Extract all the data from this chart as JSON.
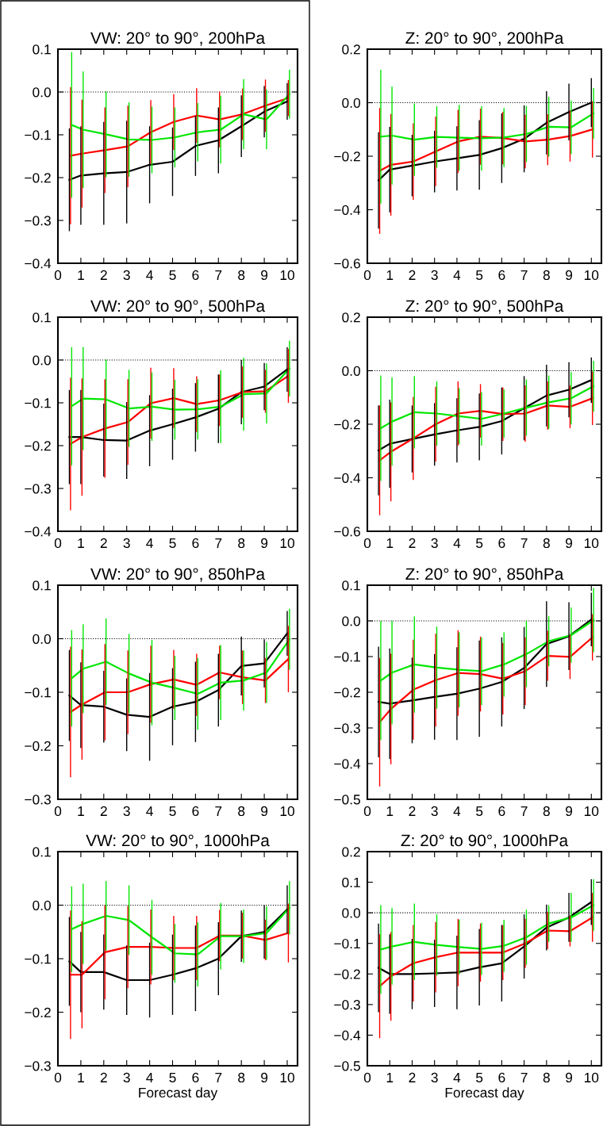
{
  "chart_data": [
    {
      "type": "line",
      "title": "VW: 20° to 90°, 200hPa",
      "xlim": [
        0,
        10.45
      ],
      "xticks": [
        0,
        1,
        2,
        3,
        4,
        5,
        6,
        7,
        8,
        9,
        10
      ],
      "ylim": [
        -0.4,
        0.1
      ],
      "yticks": [
        {
          "value": -0.4,
          "label": "−0.4"
        },
        {
          "value": -0.3,
          "label": "−0.3"
        },
        {
          "value": -0.2,
          "label": "−0.2"
        },
        {
          "value": -0.1,
          "label": "−0.1"
        },
        {
          "value": 0,
          "label": "0.0"
        },
        {
          "value": 0.1,
          "label": "0.1"
        }
      ],
      "ref_lines": [
        {
          "axis": "y",
          "value": 0,
          "line_style": "dotted",
          "color": "#000000"
        }
      ],
      "line_style": "solid",
      "marker": "none",
      "series": [
        {
          "color": "#000000",
          "x": [
            0.5,
            1,
            2,
            3,
            4,
            5,
            6,
            7,
            8,
            9,
            10
          ],
          "values": [
            -0.205,
            -0.195,
            -0.19,
            -0.187,
            -0.17,
            -0.163,
            -0.126,
            -0.113,
            -0.08,
            -0.046,
            -0.022
          ],
          "errors": [
            0.12,
            0.115,
            0.12,
            0.12,
            0.09,
            0.08,
            0.07,
            0.077,
            0.072,
            0.06,
            0.043
          ]
        },
        {
          "color": "#ff0000",
          "x": [
            0.55,
            1.05,
            2.05,
            3.05,
            4.05,
            5.05,
            6.05,
            7.05,
            8.05,
            9.05,
            10.05
          ],
          "values": [
            -0.149,
            -0.144,
            -0.136,
            -0.127,
            -0.094,
            -0.07,
            -0.055,
            -0.064,
            -0.052,
            -0.032,
            -0.014
          ],
          "errors": [
            0.16,
            0.126,
            0.1,
            0.095,
            0.075,
            0.065,
            0.064,
            0.065,
            0.06,
            0.061,
            0.042
          ]
        },
        {
          "color": "#00e600",
          "x": [
            0.6,
            1.1,
            2.1,
            3.1,
            4.1,
            5.1,
            6.1,
            7.1,
            8.1,
            9.1,
            10.1
          ],
          "values": [
            -0.077,
            -0.088,
            -0.099,
            -0.111,
            -0.112,
            -0.106,
            -0.094,
            -0.088,
            -0.052,
            -0.064,
            -0.005
          ],
          "errors": [
            0.17,
            0.136,
            0.1,
            0.087,
            0.078,
            0.07,
            0.068,
            0.079,
            0.082,
            0.07,
            0.057
          ]
        }
      ]
    },
    {
      "type": "line",
      "title": "Z: 20° to 90°, 200hPa",
      "xlim": [
        0,
        10.45
      ],
      "xticks": [
        0,
        1,
        2,
        3,
        4,
        5,
        6,
        7,
        8,
        9,
        10
      ],
      "ylim": [
        -0.6,
        0.2
      ],
      "yticks": [
        {
          "value": -0.6,
          "label": "−0.6"
        },
        {
          "value": -0.4,
          "label": "−0.4"
        },
        {
          "value": -0.2,
          "label": "−0.2"
        },
        {
          "value": 0,
          "label": "0.0"
        },
        {
          "value": 0.2,
          "label": "0.2"
        }
      ],
      "ref_lines": [
        {
          "axis": "y",
          "value": 0,
          "line_style": "dotted",
          "color": "#000000"
        }
      ],
      "line_style": "solid",
      "marker": "none",
      "series": [
        {
          "color": "#000000",
          "x": [
            0.5,
            1,
            2,
            3,
            4,
            5,
            6,
            7,
            8,
            9,
            10
          ],
          "values": [
            -0.29,
            -0.25,
            -0.235,
            -0.22,
            -0.208,
            -0.195,
            -0.17,
            -0.135,
            -0.075,
            -0.035,
            0.0
          ],
          "errors": [
            0.18,
            0.16,
            0.115,
            0.115,
            0.12,
            0.13,
            0.13,
            0.125,
            0.118,
            0.106,
            0.092
          ]
        },
        {
          "color": "#ff0000",
          "x": [
            0.55,
            1.05,
            2.05,
            3.05,
            4.05,
            5.05,
            6.05,
            7.05,
            8.05,
            9.05,
            10.05
          ],
          "values": [
            -0.255,
            -0.232,
            -0.22,
            -0.182,
            -0.145,
            -0.127,
            -0.132,
            -0.145,
            -0.138,
            -0.125,
            -0.1
          ],
          "errors": [
            0.235,
            0.19,
            0.143,
            0.13,
            0.118,
            0.105,
            0.098,
            0.1,
            0.095,
            0.095,
            0.105
          ]
        },
        {
          "color": "#00e600",
          "x": [
            0.6,
            1.1,
            2.1,
            3.1,
            4.1,
            5.1,
            6.1,
            7.1,
            8.1,
            9.1,
            10.1
          ],
          "values": [
            -0.127,
            -0.123,
            -0.138,
            -0.128,
            -0.131,
            -0.133,
            -0.13,
            -0.117,
            -0.09,
            -0.092,
            -0.04
          ],
          "errors": [
            0.25,
            0.183,
            0.135,
            0.115,
            0.123,
            0.12,
            0.11,
            0.105,
            0.112,
            0.1,
            0.095
          ]
        }
      ]
    },
    {
      "type": "line",
      "title": "VW: 20° to 90°, 500hPa",
      "xlim": [
        0,
        10.45
      ],
      "xticks": [
        0,
        1,
        2,
        3,
        4,
        5,
        6,
        7,
        8,
        9,
        10
      ],
      "ylim": [
        -0.4,
        0.1
      ],
      "yticks": [
        {
          "value": -0.4,
          "label": "−0.4"
        },
        {
          "value": -0.3,
          "label": "−0.3"
        },
        {
          "value": -0.2,
          "label": "−0.2"
        },
        {
          "value": -0.1,
          "label": "−0.1"
        },
        {
          "value": 0,
          "label": "0.0"
        },
        {
          "value": 0.1,
          "label": "0.1"
        }
      ],
      "ref_lines": [
        {
          "axis": "y",
          "value": 0,
          "line_style": "dotted",
          "color": "#000000"
        }
      ],
      "line_style": "solid",
      "marker": "none",
      "series": [
        {
          "color": "#000000",
          "x": [
            0.5,
            1,
            2,
            3,
            4,
            5,
            6,
            7,
            8,
            9,
            10
          ],
          "values": [
            -0.18,
            -0.18,
            -0.187,
            -0.188,
            -0.165,
            -0.15,
            -0.134,
            -0.114,
            -0.075,
            -0.062,
            -0.022
          ],
          "errors": [
            0.11,
            0.11,
            0.085,
            0.09,
            0.083,
            0.083,
            0.08,
            0.08,
            0.075,
            0.055,
            0.052
          ]
        },
        {
          "color": "#ff0000",
          "x": [
            0.55,
            1.05,
            2.05,
            3.05,
            4.05,
            5.05,
            6.05,
            7.05,
            8.05,
            9.05,
            10.05
          ],
          "values": [
            -0.196,
            -0.18,
            -0.16,
            -0.145,
            -0.101,
            -0.089,
            -0.103,
            -0.094,
            -0.075,
            -0.073,
            -0.037
          ],
          "errors": [
            0.155,
            0.137,
            0.115,
            0.1,
            0.083,
            0.07,
            0.065,
            0.06,
            0.06,
            0.05,
            0.063
          ]
        },
        {
          "color": "#00e600",
          "x": [
            0.6,
            1.1,
            2.1,
            3.1,
            4.1,
            5.1,
            6.1,
            7.1,
            8.1,
            9.1,
            10.1
          ],
          "values": [
            -0.108,
            -0.09,
            -0.092,
            -0.113,
            -0.109,
            -0.116,
            -0.115,
            -0.109,
            -0.08,
            -0.078,
            -0.02
          ],
          "errors": [
            0.138,
            0.12,
            0.093,
            0.09,
            0.08,
            0.07,
            0.07,
            0.085,
            0.085,
            0.07,
            0.065
          ]
        }
      ]
    },
    {
      "type": "line",
      "title": "Z: 20° to 90°, 500hPa",
      "xlim": [
        0,
        10.45
      ],
      "xticks": [
        0,
        1,
        2,
        3,
        4,
        5,
        6,
        7,
        8,
        9,
        10
      ],
      "ylim": [
        -0.6,
        0.2
      ],
      "yticks": [
        {
          "value": -0.6,
          "label": "−0.6"
        },
        {
          "value": -0.4,
          "label": "−0.4"
        },
        {
          "value": -0.2,
          "label": "−0.2"
        },
        {
          "value": 0,
          "label": "0.0"
        },
        {
          "value": 0.2,
          "label": "0.2"
        }
      ],
      "ref_lines": [
        {
          "axis": "y",
          "value": 0,
          "line_style": "dotted",
          "color": "#000000"
        }
      ],
      "line_style": "solid",
      "marker": "none",
      "series": [
        {
          "color": "#000000",
          "x": [
            0.5,
            1,
            2,
            3,
            4,
            5,
            6,
            7,
            8,
            9,
            10
          ],
          "values": [
            -0.298,
            -0.273,
            -0.255,
            -0.238,
            -0.223,
            -0.21,
            -0.188,
            -0.14,
            -0.093,
            -0.071,
            -0.035
          ],
          "errors": [
            0.168,
            0.165,
            0.125,
            0.117,
            0.12,
            0.125,
            0.125,
            0.12,
            0.115,
            0.103,
            0.085
          ]
        },
        {
          "color": "#ff0000",
          "x": [
            0.55,
            1.05,
            2.05,
            3.05,
            4.05,
            5.05,
            6.05,
            7.05,
            8.05,
            9.05,
            10.05
          ],
          "values": [
            -0.335,
            -0.303,
            -0.253,
            -0.2,
            -0.16,
            -0.15,
            -0.162,
            -0.16,
            -0.13,
            -0.135,
            -0.103
          ],
          "errors": [
            0.205,
            0.185,
            0.155,
            0.14,
            0.12,
            0.1,
            0.1,
            0.105,
            0.09,
            0.08,
            0.1
          ]
        },
        {
          "color": "#00e600",
          "x": [
            0.6,
            1.1,
            2.1,
            3.1,
            4.1,
            5.1,
            6.1,
            7.1,
            8.1,
            9.1,
            10.1
          ],
          "values": [
            -0.215,
            -0.19,
            -0.155,
            -0.16,
            -0.17,
            -0.18,
            -0.16,
            -0.138,
            -0.118,
            -0.103,
            -0.058
          ],
          "errors": [
            0.197,
            0.165,
            0.135,
            0.12,
            0.105,
            0.1,
            0.09,
            0.105,
            0.1,
            0.098,
            0.095
          ]
        }
      ]
    },
    {
      "type": "line",
      "title": "VW: 20° to 90°, 850hPa",
      "xlim": [
        0,
        10.45
      ],
      "xticks": [
        0,
        1,
        2,
        3,
        4,
        5,
        6,
        7,
        8,
        9,
        10
      ],
      "ylim": [
        -0.3,
        0.1
      ],
      "yticks": [
        {
          "value": -0.3,
          "label": "−0.3"
        },
        {
          "value": -0.2,
          "label": "−0.2"
        },
        {
          "value": -0.1,
          "label": "−0.1"
        },
        {
          "value": 0,
          "label": "0.0"
        },
        {
          "value": 0.1,
          "label": "0.1"
        }
      ],
      "ref_lines": [
        {
          "axis": "y",
          "value": 0,
          "line_style": "dotted",
          "color": "#000000"
        }
      ],
      "line_style": "solid",
      "marker": "none",
      "series": [
        {
          "color": "#000000",
          "x": [
            0.5,
            1,
            2,
            3,
            4,
            5,
            6,
            7,
            8,
            9,
            10
          ],
          "values": [
            -0.106,
            -0.124,
            -0.127,
            -0.142,
            -0.146,
            -0.127,
            -0.118,
            -0.096,
            -0.051,
            -0.046,
            0.01
          ],
          "errors": [
            0.085,
            0.08,
            0.067,
            0.068,
            0.082,
            0.072,
            0.075,
            0.068,
            0.055,
            0.045,
            0.042
          ]
        },
        {
          "color": "#ff0000",
          "x": [
            0.55,
            1.05,
            2.05,
            3.05,
            4.05,
            5.05,
            6.05,
            7.05,
            8.05,
            9.05,
            10.05
          ],
          "values": [
            -0.137,
            -0.123,
            -0.1,
            -0.1,
            -0.085,
            -0.076,
            -0.086,
            -0.063,
            -0.072,
            -0.078,
            -0.038
          ],
          "errors": [
            0.122,
            0.103,
            0.09,
            0.078,
            0.072,
            0.055,
            0.058,
            0.05,
            0.05,
            0.042,
            0.062
          ]
        },
        {
          "color": "#00e600",
          "x": [
            0.6,
            1.1,
            2.1,
            3.1,
            4.1,
            5.1,
            6.1,
            7.1,
            8.1,
            9.1,
            10.1
          ],
          "values": [
            -0.074,
            -0.056,
            -0.043,
            -0.065,
            -0.082,
            -0.092,
            -0.103,
            -0.082,
            -0.078,
            -0.063,
            -0.001
          ],
          "errors": [
            0.09,
            0.083,
            0.081,
            0.074,
            0.08,
            0.06,
            0.067,
            0.07,
            0.056,
            0.057,
            0.057
          ]
        }
      ]
    },
    {
      "type": "line",
      "title": "Z: 20° to 90°, 850hPa",
      "xlim": [
        0,
        10.45
      ],
      "xticks": [
        0,
        1,
        2,
        3,
        4,
        5,
        6,
        7,
        8,
        9,
        10
      ],
      "ylim": [
        -0.5,
        0.1
      ],
      "yticks": [
        {
          "value": -0.5,
          "label": "−0.5"
        },
        {
          "value": -0.4,
          "label": "−0.4"
        },
        {
          "value": -0.3,
          "label": "−0.3"
        },
        {
          "value": -0.2,
          "label": "−0.2"
        },
        {
          "value": -0.1,
          "label": "−0.1"
        },
        {
          "value": 0,
          "label": "0.0"
        },
        {
          "value": 0.1,
          "label": "0.1"
        }
      ],
      "ref_lines": [
        {
          "axis": "y",
          "value": 0,
          "line_style": "dotted",
          "color": "#000000"
        }
      ],
      "line_style": "solid",
      "marker": "none",
      "series": [
        {
          "color": "#000000",
          "x": [
            0.5,
            1,
            2,
            3,
            4,
            5,
            6,
            7,
            8,
            9,
            10
          ],
          "values": [
            -0.227,
            -0.232,
            -0.223,
            -0.213,
            -0.204,
            -0.19,
            -0.171,
            -0.132,
            -0.065,
            -0.043,
            0.004
          ],
          "errors": [
            0.155,
            0.155,
            0.12,
            0.12,
            0.13,
            0.135,
            0.125,
            0.115,
            0.12,
            0.095,
            0.075
          ]
        },
        {
          "color": "#ff0000",
          "x": [
            0.55,
            1.05,
            2.05,
            3.05,
            4.05,
            5.05,
            6.05,
            7.05,
            8.05,
            9.05,
            10.05
          ],
          "values": [
            -0.284,
            -0.247,
            -0.193,
            -0.166,
            -0.146,
            -0.149,
            -0.162,
            -0.141,
            -0.098,
            -0.101,
            -0.046
          ],
          "errors": [
            0.18,
            0.155,
            0.14,
            0.13,
            0.12,
            0.105,
            0.1,
            0.095,
            0.07,
            0.062,
            0.065
          ]
        },
        {
          "color": "#00e600",
          "x": [
            0.6,
            1.1,
            2.1,
            3.1,
            4.1,
            5.1,
            6.1,
            7.1,
            8.1,
            9.1,
            10.1
          ],
          "values": [
            -0.167,
            -0.145,
            -0.122,
            -0.131,
            -0.137,
            -0.141,
            -0.122,
            -0.093,
            -0.057,
            -0.04,
            0.002
          ],
          "errors": [
            0.167,
            0.145,
            0.135,
            0.115,
            0.105,
            0.095,
            0.09,
            0.093,
            0.07,
            0.077,
            0.09
          ]
        }
      ]
    },
    {
      "type": "line",
      "title": "VW: 20° to 90°, 1000hPa",
      "xlabel": "Forecast day",
      "xlim": [
        0,
        10.45
      ],
      "xticks": [
        0,
        1,
        2,
        3,
        4,
        5,
        6,
        7,
        8,
        9,
        10
      ],
      "ylim": [
        -0.3,
        0.1
      ],
      "yticks": [
        {
          "value": -0.3,
          "label": "−0.3"
        },
        {
          "value": -0.2,
          "label": "−0.2"
        },
        {
          "value": -0.1,
          "label": "−0.1"
        },
        {
          "value": 0,
          "label": "0.0"
        },
        {
          "value": 0.1,
          "label": "0.1"
        }
      ],
      "ref_lines": [
        {
          "axis": "y",
          "value": 0,
          "line_style": "dotted",
          "color": "#000000"
        }
      ],
      "line_style": "solid",
      "marker": "none",
      "series": [
        {
          "color": "#000000",
          "x": [
            0.5,
            1,
            2,
            3,
            4,
            5,
            6,
            7,
            8,
            9,
            10
          ],
          "values": [
            -0.105,
            -0.125,
            -0.125,
            -0.14,
            -0.14,
            -0.13,
            -0.118,
            -0.1,
            -0.058,
            -0.05,
            -0.008
          ],
          "errors": [
            0.083,
            0.075,
            0.07,
            0.065,
            0.07,
            0.075,
            0.08,
            0.068,
            0.048,
            0.05,
            0.045
          ]
        },
        {
          "color": "#ff0000",
          "x": [
            0.55,
            1.05,
            2.05,
            3.05,
            4.05,
            5.05,
            6.05,
            7.05,
            8.05,
            9.05,
            10.05
          ],
          "values": [
            -0.13,
            -0.13,
            -0.088,
            -0.078,
            -0.078,
            -0.08,
            -0.08,
            -0.057,
            -0.057,
            -0.065,
            -0.052
          ],
          "errors": [
            0.12,
            0.1,
            0.088,
            0.077,
            0.07,
            0.06,
            0.06,
            0.048,
            0.043,
            0.038,
            0.055
          ]
        },
        {
          "color": "#00e600",
          "x": [
            0.6,
            1.1,
            2.1,
            3.1,
            4.1,
            5.1,
            6.1,
            7.1,
            8.1,
            9.1,
            10.1
          ],
          "values": [
            -0.045,
            -0.035,
            -0.02,
            -0.028,
            -0.06,
            -0.09,
            -0.092,
            -0.058,
            -0.058,
            -0.052,
            -0.005
          ],
          "errors": [
            0.08,
            0.075,
            0.065,
            0.065,
            0.07,
            0.055,
            0.06,
            0.062,
            0.05,
            0.05,
            0.05
          ]
        }
      ]
    },
    {
      "type": "line",
      "title": "Z: 20° to 90°, 1000hPa",
      "xlabel": "Forecast day",
      "xlim": [
        0,
        10.45
      ],
      "xticks": [
        0,
        1,
        2,
        3,
        4,
        5,
        6,
        7,
        8,
        9,
        10
      ],
      "ylim": [
        -0.5,
        0.2
      ],
      "yticks": [
        {
          "value": -0.5,
          "label": "−0.5"
        },
        {
          "value": -0.4,
          "label": "−0.4"
        },
        {
          "value": -0.3,
          "label": "−0.3"
        },
        {
          "value": -0.2,
          "label": "−0.2"
        },
        {
          "value": -0.1,
          "label": "−0.1"
        },
        {
          "value": 0,
          "label": "0.0"
        },
        {
          "value": 0.1,
          "label": "0.1"
        },
        {
          "value": 0.2,
          "label": "0.2"
        }
      ],
      "ref_lines": [
        {
          "axis": "y",
          "value": 0,
          "line_style": "dotted",
          "color": "#000000"
        }
      ],
      "line_style": "solid",
      "marker": "none",
      "series": [
        {
          "color": "#000000",
          "x": [
            0.5,
            1,
            2,
            3,
            4,
            5,
            6,
            7,
            8,
            9,
            10
          ],
          "values": [
            -0.18,
            -0.2,
            -0.2,
            -0.198,
            -0.195,
            -0.178,
            -0.165,
            -0.11,
            -0.048,
            -0.015,
            0.035
          ],
          "errors": [
            0.145,
            0.13,
            0.115,
            0.11,
            0.12,
            0.125,
            0.125,
            0.105,
            0.075,
            0.08,
            0.075
          ]
        },
        {
          "color": "#ff0000",
          "x": [
            0.55,
            1.05,
            2.05,
            3.05,
            4.05,
            5.05,
            6.05,
            7.05,
            8.05,
            9.05,
            10.05
          ],
          "values": [
            -0.24,
            -0.208,
            -0.165,
            -0.145,
            -0.13,
            -0.13,
            -0.13,
            -0.1,
            -0.058,
            -0.06,
            -0.015
          ],
          "errors": [
            0.17,
            0.145,
            0.125,
            0.115,
            0.11,
            0.095,
            0.09,
            0.08,
            0.06,
            0.05,
            0.08
          ]
        },
        {
          "color": "#00e600",
          "x": [
            0.6,
            1.1,
            2.1,
            3.1,
            4.1,
            5.1,
            6.1,
            7.1,
            8.1,
            9.1,
            10.1
          ],
          "values": [
            -0.12,
            -0.11,
            -0.095,
            -0.105,
            -0.112,
            -0.118,
            -0.108,
            -0.08,
            -0.035,
            -0.015,
            0.025
          ],
          "errors": [
            0.145,
            0.125,
            0.125,
            0.1,
            0.09,
            0.085,
            0.085,
            0.09,
            0.06,
            0.08,
            0.085
          ]
        }
      ]
    }
  ]
}
